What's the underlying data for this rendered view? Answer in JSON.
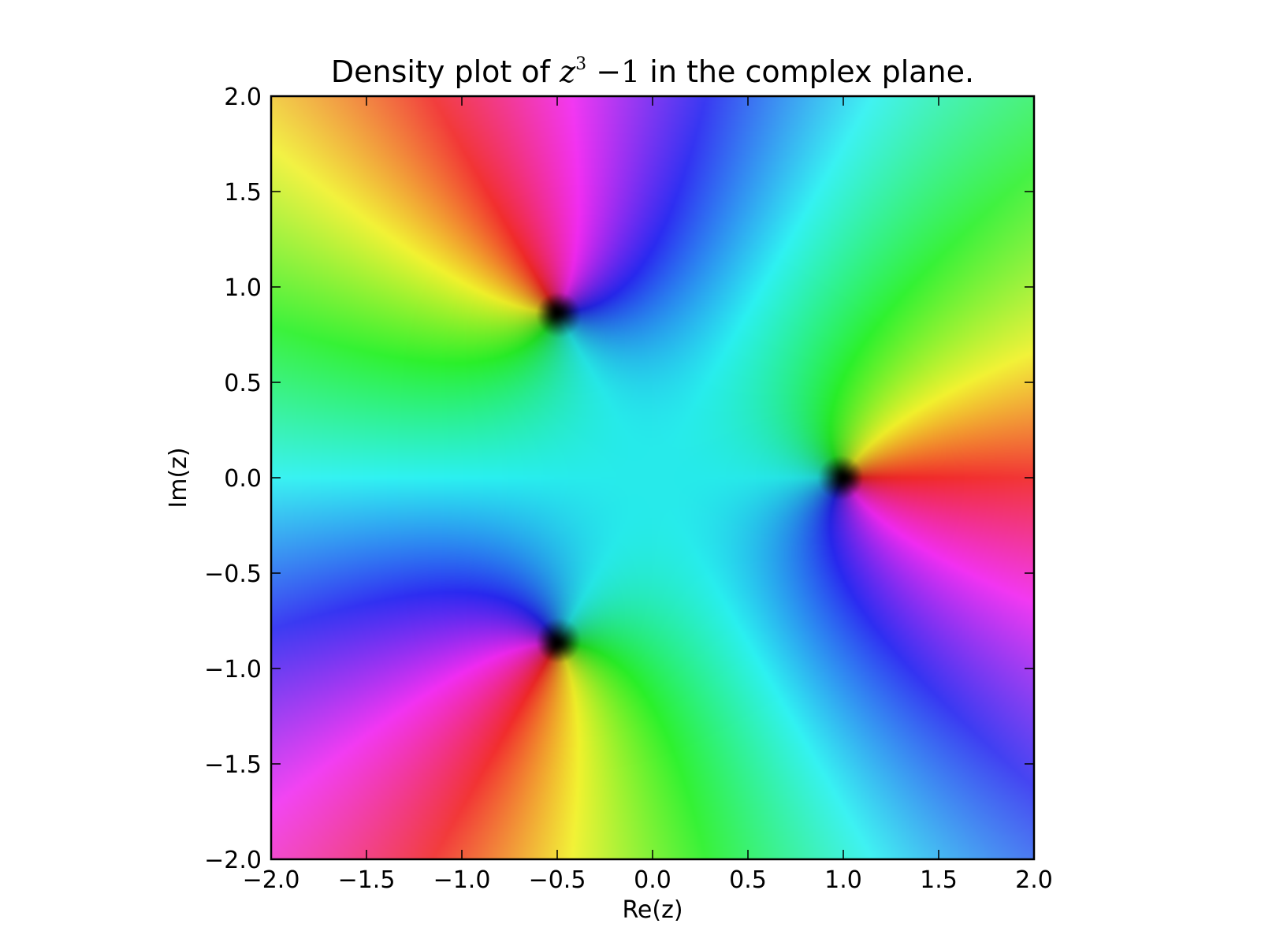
{
  "chart_data": {
    "type": "heatmap",
    "kind": "domain-coloring",
    "function": "z^3 - 1",
    "title": {
      "prefix": "Density plot of ",
      "math_var": "z",
      "math_exp": "3",
      "math_rest": " −1",
      "suffix": " in the complex plane."
    },
    "xlabel": "Re(z)",
    "ylabel": "Im(z)",
    "xlim": [
      -2.0,
      2.0
    ],
    "ylim": [
      -2.0,
      2.0
    ],
    "xticks": [
      -2.0,
      -1.5,
      -1.0,
      -0.5,
      0.0,
      0.5,
      1.0,
      1.5,
      2.0
    ],
    "yticks": [
      -2.0,
      -1.5,
      -1.0,
      -0.5,
      0.0,
      0.5,
      1.0,
      1.5,
      2.0
    ],
    "xtick_labels": [
      "−2.0",
      "−1.5",
      "−1.0",
      "−0.5",
      "0.0",
      "0.5",
      "1.0",
      "1.5",
      "2.0"
    ],
    "ytick_labels": [
      "−2.0",
      "−1.5",
      "−1.0",
      "−0.5",
      "0.0",
      "0.5",
      "1.0",
      "1.5",
      "2.0"
    ],
    "zeros": [
      {
        "re": 1.0,
        "im": 0.0
      },
      {
        "re": -0.5,
        "im": 0.866
      },
      {
        "re": -0.5,
        "im": -0.866
      }
    ],
    "grid": false,
    "colors": {
      "frame": "#000000",
      "background": "#ffffff"
    }
  }
}
